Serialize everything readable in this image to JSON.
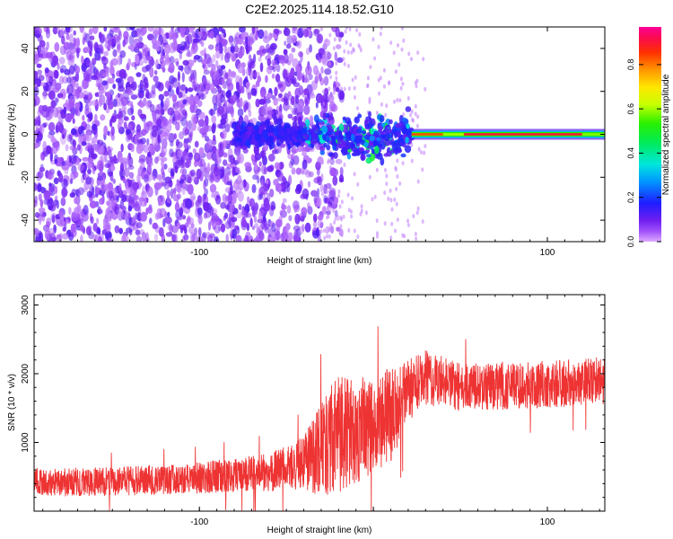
{
  "title": "C2E2.2025.114.18.52.G10",
  "chart_data": [
    {
      "type": "heatmap",
      "xlabel": "Height of straight line (km)",
      "ylabel": "Frequency (Hz)",
      "xlim": [
        -195,
        133
      ],
      "ylim": [
        -50,
        50
      ],
      "xticks": [
        -100,
        0,
        100
      ],
      "xtick_labels": [
        "-100",
        "",
        "100"
      ],
      "yticks": [
        -40,
        -20,
        0,
        20,
        40
      ],
      "ytick_labels": [
        "-40",
        "-20",
        "0",
        "20",
        "40"
      ],
      "grid": false,
      "colorbar": {
        "label": "Normalized spectral amplitude",
        "range": [
          0,
          0.97
        ],
        "ticks": [
          0.0,
          0.2,
          0.4,
          0.6,
          0.8
        ],
        "tick_labels": [
          "0.0",
          "0.2",
          "0.4",
          "0.6",
          "0.8"
        ],
        "colormap": "rainbow"
      },
      "features": {
        "noise_region_x": [
          -195,
          -30
        ],
        "turbulent_region_x": [
          -30,
          22
        ],
        "stable_line_x": [
          22,
          133
        ],
        "stable_line_frequency": 0,
        "stable_line_peak_amplitude": 0.95
      }
    },
    {
      "type": "line",
      "xlabel": "Height of straight line (km)",
      "ylabel": "SNR (10 * v/v)",
      "xlim": [
        -195,
        133
      ],
      "ylim": [
        0,
        3150
      ],
      "xticks": [
        -100,
        0,
        100
      ],
      "xtick_labels": [
        "-100",
        "",
        "100"
      ],
      "yticks": [
        1000,
        2000,
        3000
      ],
      "ytick_labels": [
        "1000",
        "2000",
        "3000"
      ],
      "grid": false,
      "series": [
        {
          "color": "#ee3333",
          "x": [
            -195,
            -150,
            -100,
            -60,
            -40,
            -30,
            -20,
            -10,
            0,
            10,
            20,
            30,
            50,
            100,
            133
          ],
          "y": [
            420,
            430,
            480,
            560,
            700,
            900,
            1100,
            1200,
            1250,
            1400,
            1750,
            1950,
            1800,
            1850,
            1900
          ],
          "spread": [
            210,
            210,
            230,
            280,
            380,
            700,
            900,
            800,
            700,
            700,
            450,
            400,
            350,
            350,
            350
          ]
        }
      ]
    }
  ],
  "colors": {
    "line": "#ee3333",
    "axis": "#000000",
    "noise_purple": "#7a2cf0"
  }
}
